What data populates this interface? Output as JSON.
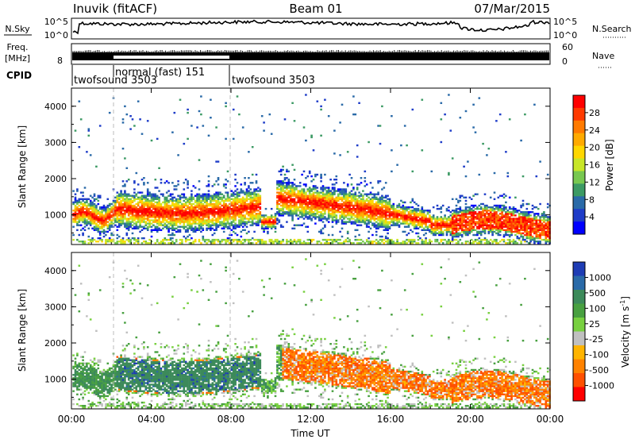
{
  "header": {
    "station": "Inuvik (fitACF)",
    "beam": "Beam 01",
    "date": "07/Mar/2015"
  },
  "noise_panel": {
    "left_label": "N.Sky",
    "right_label": "N.Search",
    "left_ticks": [
      "10^5",
      "10^0"
    ],
    "right_ticks": [
      "10^5",
      "10^0"
    ]
  },
  "freq_panel": {
    "left_label_line1": "Freq.",
    "left_label_line2": "[MHz]",
    "left_tick": "8",
    "right_label": "Nave",
    "right_ticks": [
      "60",
      "0"
    ]
  },
  "cpid": {
    "label": "CPID",
    "segments": [
      {
        "name": "twofsound 3503",
        "start_h": 0,
        "end_h": 2
      },
      {
        "name": "normal (fast) 151",
        "start_h": 2,
        "end_h": 8
      },
      {
        "name": "twofsound 3503",
        "start_h": 8,
        "end_h": 24
      }
    ]
  },
  "chart_data": [
    {
      "type": "heatmap",
      "title": "",
      "ylabel": "Slant Range [km]",
      "xlabel": "",
      "xlim_h": [
        0,
        24
      ],
      "ylim": [
        180,
        4500
      ],
      "yticks": [
        "1000",
        "2000",
        "3000",
        "4000"
      ],
      "colorbar": {
        "label": "Power [dB]",
        "ticks": [
          "28",
          "24",
          "20",
          "16",
          "12",
          "8",
          "4"
        ],
        "colors": [
          "#ff0000",
          "#ff3a00",
          "#ff7a00",
          "#ffaa00",
          "#ffd700",
          "#c8e628",
          "#78c850",
          "#3c9a64",
          "#2a6aa8",
          "#1e3cc8",
          "#0000ff"
        ]
      }
    },
    {
      "type": "heatmap",
      "title": "",
      "ylabel": "Slant Range [km]",
      "xlabel": "Time UT",
      "xlim_h": [
        0,
        24
      ],
      "ylim": [
        180,
        4500
      ],
      "yticks": [
        "1000",
        "2000",
        "3000",
        "4000"
      ],
      "xticks": [
        "00:00",
        "04:00",
        "08:00",
        "12:00",
        "16:00",
        "20:00",
        "00:00"
      ],
      "colorbar": {
        "label": "Velocity [m s",
        "label_sup": "-1",
        "label_tail": "]",
        "ticks": [
          "1000",
          "500",
          "100",
          "25",
          "-25",
          "-100",
          "-500",
          "-1000"
        ],
        "colors": [
          "#1e3cb4",
          "#2a6aa8",
          "#3c8a5a",
          "#48a040",
          "#78d040",
          "#c0c0c0",
          "#ffb400",
          "#ff8200",
          "#ff5000",
          "#ff0000"
        ]
      }
    }
  ]
}
